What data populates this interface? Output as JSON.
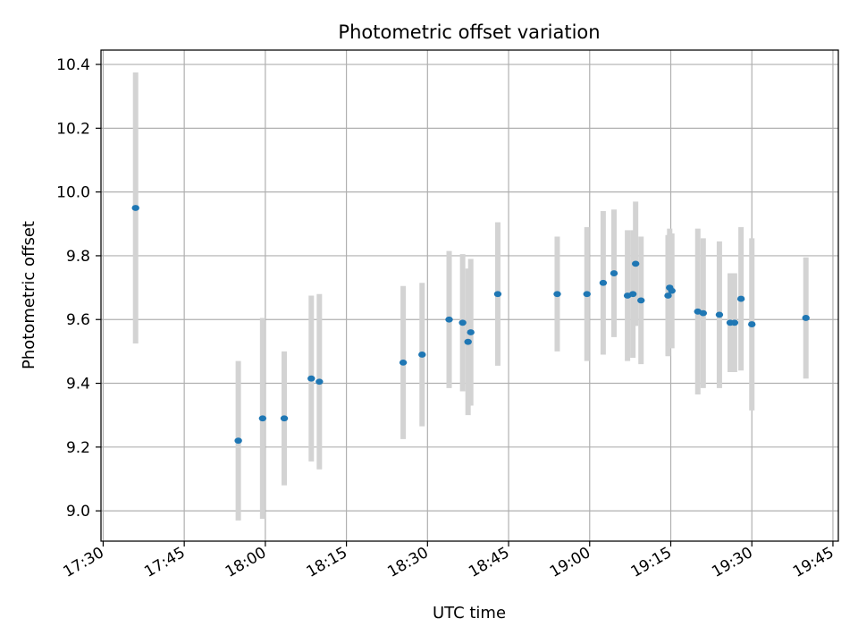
{
  "chart_data": {
    "type": "scatter",
    "title": "Photometric offset variation",
    "xlabel": "UTC time",
    "ylabel": "Photometric offset",
    "x_ticks": [
      "17:30",
      "17:45",
      "18:00",
      "18:15",
      "18:30",
      "18:45",
      "19:00",
      "19:15",
      "19:30",
      "19:45"
    ],
    "y_ticks": [
      "9.0",
      "9.2",
      "9.4",
      "9.6",
      "9.8",
      "10.0",
      "10.2",
      "10.4"
    ],
    "xlim": [
      "17:29.6",
      "19:46.0"
    ],
    "ylim": [
      8.905,
      10.445
    ],
    "grid": true,
    "marker_color": "#1f77b4",
    "errorbar_color": "#d3d3d3",
    "points": [
      {
        "x": "17:36",
        "y": 9.95,
        "err": 0.425
      },
      {
        "x": "17:55",
        "y": 9.22,
        "err": 0.25
      },
      {
        "x": "17:59.5",
        "y": 9.29,
        "err": 0.315
      },
      {
        "x": "18:03.5",
        "y": 9.29,
        "err": 0.21
      },
      {
        "x": "18:08.5",
        "y": 9.415,
        "err": 0.26
      },
      {
        "x": "18:10",
        "y": 9.405,
        "err": 0.275
      },
      {
        "x": "18:25.5",
        "y": 9.465,
        "err": 0.24
      },
      {
        "x": "18:29",
        "y": 9.49,
        "err": 0.225
      },
      {
        "x": "18:34",
        "y": 9.6,
        "err": 0.215
      },
      {
        "x": "18:36.5",
        "y": 9.59,
        "err": 0.215
      },
      {
        "x": "18:37.5",
        "y": 9.53,
        "err": 0.23
      },
      {
        "x": "18:38",
        "y": 9.56,
        "err": 0.23
      },
      {
        "x": "18:43",
        "y": 9.68,
        "err": 0.225
      },
      {
        "x": "18:54",
        "y": 9.68,
        "err": 0.18
      },
      {
        "x": "18:59.5",
        "y": 9.68,
        "err": 0.21
      },
      {
        "x": "19:02.5",
        "y": 9.715,
        "err": 0.225
      },
      {
        "x": "19:04.5",
        "y": 9.745,
        "err": 0.2
      },
      {
        "x": "19:07",
        "y": 9.675,
        "err": 0.205
      },
      {
        "x": "19:08",
        "y": 9.68,
        "err": 0.2
      },
      {
        "x": "19:08.5",
        "y": 9.775,
        "err": 0.195
      },
      {
        "x": "19:09.5",
        "y": 9.66,
        "err": 0.2
      },
      {
        "x": "19:14.5",
        "y": 9.675,
        "err": 0.19
      },
      {
        "x": "19:14.8",
        "y": 9.7,
        "err": 0.185
      },
      {
        "x": "19:15.2",
        "y": 9.69,
        "err": 0.18
      },
      {
        "x": "19:20",
        "y": 9.625,
        "err": 0.26
      },
      {
        "x": "19:21",
        "y": 9.62,
        "err": 0.235
      },
      {
        "x": "19:24",
        "y": 9.615,
        "err": 0.23
      },
      {
        "x": "19:26",
        "y": 9.59,
        "err": 0.155
      },
      {
        "x": "19:26.8",
        "y": 9.59,
        "err": 0.155
      },
      {
        "x": "19:28",
        "y": 9.665,
        "err": 0.225
      },
      {
        "x": "19:30",
        "y": 9.585,
        "err": 0.27
      },
      {
        "x": "19:40",
        "y": 9.605,
        "err": 0.19
      }
    ]
  }
}
